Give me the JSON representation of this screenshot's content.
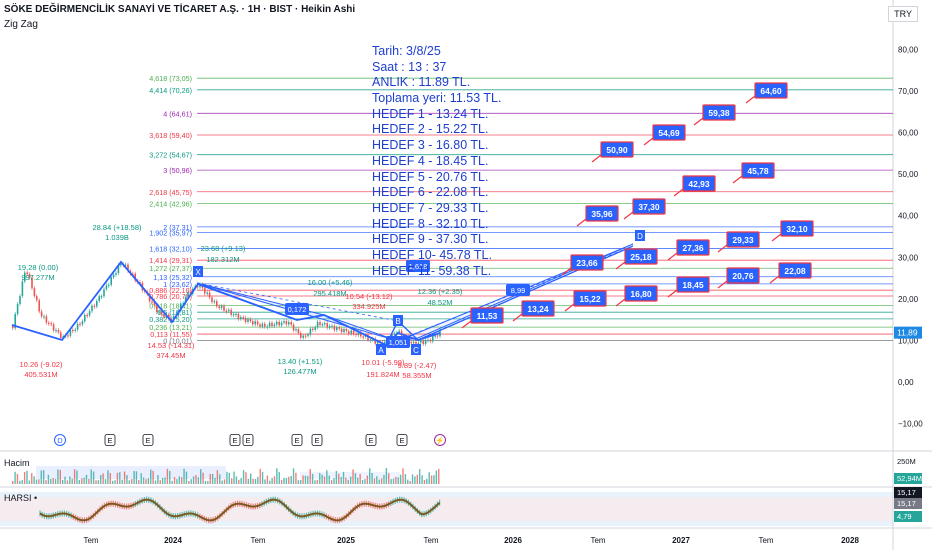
{
  "header": {
    "title": "SÖKE DEĞİRMENCİLİK SANAYİ VE TİCARET A.Ş. · 1H · BIST · Heikin Ashi",
    "indicator": "Zig Zag",
    "currency": "TRY"
  },
  "info_lines": [
    "Tarih:   3/8/25",
    "Saat :    13 : 37",
    "ANLIK :  11.89 TL.",
    "Toplama yeri: 11.53 TL.",
    "HEDEF 1 - 13.24 TL.",
    "HEDEF 2 - 15.22 TL.",
    "HEDEF 3 - 16.80 TL.",
    "HEDEF 4 - 18.45 TL.",
    "HEDEF 5 - 20.76 TL.",
    "HEDEF 6 - 22.08 TL.",
    "HEDEF 7 - 29.33 TL.",
    "HEDEF  8 - 32.10 TL.",
    "HEDEF  9 - 37.30 TL.",
    "HEDEF 10- 45.78 TL.",
    "HEDEF 11- 59.38 TL."
  ],
  "fib_levels": [
    {
      "label": "4,618 (73,05)",
      "value": 73.05,
      "color": "#4caf50"
    },
    {
      "label": "4,414 (70,26)",
      "value": 70.26,
      "color": "#089981"
    },
    {
      "label": "4 (64,61)",
      "value": 64.61,
      "color": "#9c27b0"
    },
    {
      "label": "3,618 (59,40)",
      "value": 59.4,
      "color": "#f23645"
    },
    {
      "label": "3,272 (54,67)",
      "value": 54.67,
      "color": "#089981"
    },
    {
      "label": "3 (50,96)",
      "value": 50.96,
      "color": "#9c27b0"
    },
    {
      "label": "2,618 (45,75)",
      "value": 45.75,
      "color": "#f23645"
    },
    {
      "label": "2,414 (42,96)",
      "value": 42.96,
      "color": "#4caf50"
    },
    {
      "label": "2 (37,31)",
      "value": 37.31,
      "color": "#2962ff"
    },
    {
      "label": "1,902 (35,97)",
      "value": 35.97,
      "color": "#2962ff"
    },
    {
      "label": "1,618 (32,10)",
      "value": 32.1,
      "color": "#2962ff"
    },
    {
      "label": "1,414 (29,31)",
      "value": 29.31,
      "color": "#f23645"
    },
    {
      "label": "1,272 (27,37)",
      "value": 27.37,
      "color": "#4caf50"
    },
    {
      "label": "1,13 (25,32)",
      "value": 25.32,
      "color": "#2962ff"
    },
    {
      "label": "1 (23,62)",
      "value": 23.62,
      "color": "#2962ff"
    },
    {
      "label": "0,886 (22,10)",
      "value": 22.1,
      "color": "#f23645"
    },
    {
      "label": "0,786 (20,70)",
      "value": 20.7,
      "color": "#f23645"
    },
    {
      "label": "0,618 (18,41)",
      "value": 18.41,
      "color": "#4caf50"
    },
    {
      "label": "0,5 (16,81)",
      "value": 16.81,
      "color": "#089981"
    },
    {
      "label": "0,382 (15,20)",
      "value": 15.2,
      "color": "#089981"
    },
    {
      "label": "0,236 (13,21)",
      "value": 13.21,
      "color": "#4caf50"
    },
    {
      "label": "0,113 (11,55)",
      "value": 11.55,
      "color": "#f23645"
    },
    {
      "label": "0 (10,01)",
      "value": 10.01,
      "color": "#787b86"
    }
  ],
  "price_axis": [
    "80,00",
    "70,00",
    "60,00",
    "50,00",
    "40,00",
    "30,00",
    "20,00",
    "10,00",
    "0,00",
    "−10,00"
  ],
  "price_axis_values": [
    80,
    70,
    60,
    50,
    40,
    30,
    20,
    10,
    0,
    -10
  ],
  "last_price": "11,89",
  "time_axis": [
    "Tem",
    "2024",
    "Tem",
    "2025",
    "Tem",
    "2026",
    "Tem",
    "2027",
    "Tem",
    "2028"
  ],
  "time_axis_bold": [
    "2024",
    "2025",
    "2026",
    "2027",
    "2028"
  ],
  "targets": [
    "11,53",
    "13,24",
    "15,22",
    "16,80",
    "18,45",
    "20,76",
    "22,08",
    "23,66",
    "25,18",
    "27,36",
    "29,33",
    "32,10",
    "35,96",
    "37,30",
    "42,93",
    "45,78",
    "50,90",
    "54,69",
    "59,38",
    "64,60"
  ],
  "pattern_boxes": [
    "0,172",
    "1,618",
    "8,99",
    "1,051"
  ],
  "pattern_points": [
    "X",
    "A",
    "B",
    "C",
    "D"
  ],
  "zigzag_labels": [
    {
      "text": "19.28 (0.00)",
      "color": "#089981"
    },
    {
      "text": "997.277M",
      "color": "#089981"
    },
    {
      "text": "28.84 (+18.58)",
      "color": "#089981"
    },
    {
      "text": "1.039B",
      "color": "#089981"
    },
    {
      "text": "10.26 (-9.02)",
      "color": "#f23645"
    },
    {
      "text": "405.531M",
      "color": "#f23645"
    },
    {
      "text": "14.53 (-14.31)",
      "color": "#f23645"
    },
    {
      "text": "374.45M",
      "color": "#f23645"
    },
    {
      "text": "23.68 (+9.13)",
      "color": "#089981"
    },
    {
      "text": "182.312M",
      "color": "#089981"
    },
    {
      "text": "16.00 (+5.46)",
      "color": "#089981"
    },
    {
      "text": "295.418M",
      "color": "#089981"
    },
    {
      "text": "10.54 (-13.12)",
      "color": "#f23645"
    },
    {
      "text": "334.925M",
      "color": "#f23645"
    },
    {
      "text": "12.36 (+2.35)",
      "color": "#089981"
    },
    {
      "text": "48.52M",
      "color": "#089981"
    },
    {
      "text": "13.40 (+1.51)",
      "color": "#089981"
    },
    {
      "text": "126.477M",
      "color": "#089981"
    },
    {
      "text": "10.01 (-5.99)",
      "color": "#f23645"
    },
    {
      "text": "191.824M",
      "color": "#f23645"
    },
    {
      "text": "9.89 (-2.47)",
      "color": "#f23645"
    },
    {
      "text": "58.355M",
      "color": "#f23645"
    }
  ],
  "events": [
    "D",
    "E",
    "E",
    "E",
    "E",
    "E",
    "E",
    "E",
    "E",
    "⚡"
  ],
  "volume_pane": {
    "label": "Hacim",
    "axis": "250M",
    "value": "52,94M"
  },
  "harsi_pane": {
    "label": "HARSI •",
    "values": [
      "15,17",
      "15,17",
      "4,79"
    ]
  },
  "colors": {
    "up": "#26a69a",
    "down": "#ef5350",
    "target_box": "#2962ff",
    "target_border": "#f23645",
    "pattern_fill": "#2962ff",
    "harsi_line": "#7a5a1e"
  }
}
